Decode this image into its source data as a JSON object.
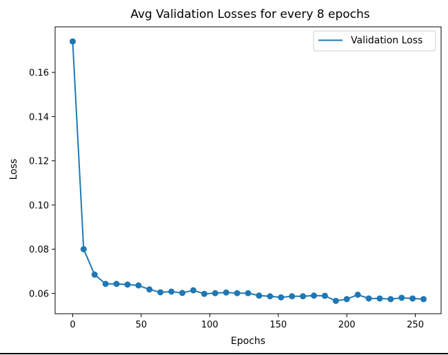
{
  "chart_data": {
    "type": "line",
    "title": "Avg Validation Losses for every 8 epochs",
    "xlabel": "Epochs",
    "ylabel": "Loss",
    "xlim": [
      -12.8,
      268.8
    ],
    "ylim": [
      0.0508,
      0.1806
    ],
    "xticks": [
      0,
      50,
      100,
      150,
      200,
      250
    ],
    "yticks": [
      0.06,
      0.08,
      0.1,
      0.12,
      0.14,
      0.16
    ],
    "xtick_labels": [
      "0",
      "50",
      "100",
      "150",
      "200",
      "250"
    ],
    "ytick_labels": [
      "0.06",
      "0.08",
      "0.10",
      "0.12",
      "0.14",
      "0.16"
    ],
    "grid": false,
    "legend": {
      "position": "top-right",
      "entries": [
        "Validation Loss"
      ]
    },
    "series": [
      {
        "name": "Validation Loss",
        "color": "#1f77b4",
        "marker": "circle",
        "x": [
          0,
          8,
          16,
          24,
          32,
          40,
          48,
          56,
          64,
          72,
          80,
          88,
          96,
          104,
          112,
          120,
          128,
          136,
          144,
          152,
          160,
          168,
          176,
          184,
          192,
          200,
          208,
          216,
          224,
          232,
          240,
          248,
          256
        ],
        "y": [
          0.174,
          0.08,
          0.0685,
          0.0643,
          0.0643,
          0.064,
          0.0636,
          0.0618,
          0.0605,
          0.0608,
          0.0602,
          0.0614,
          0.0598,
          0.0601,
          0.0604,
          0.0601,
          0.0601,
          0.059,
          0.0587,
          0.0582,
          0.0587,
          0.0587,
          0.059,
          0.0589,
          0.0566,
          0.0574,
          0.0594,
          0.0577,
          0.0577,
          0.0574,
          0.058,
          0.0577,
          0.0574
        ]
      }
    ]
  }
}
